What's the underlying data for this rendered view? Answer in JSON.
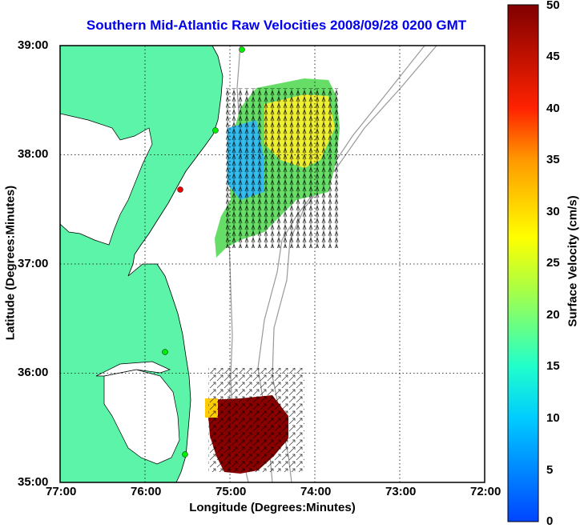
{
  "title": "Southern Mid-Atlantic Raw Velocities 2008/09/28 0200 GMT",
  "xlabel": "Longitude (Degrees:Minutes)",
  "ylabel": "Latitude (Degrees:Minutes)",
  "colorbar": {
    "label": "Surface Velocity (cm/s)",
    "min": 0,
    "max": 50,
    "ticks": [
      "0",
      "5",
      "10",
      "15",
      "20",
      "25",
      "30",
      "35",
      "40",
      "45",
      "50"
    ]
  },
  "xticks": [
    "77:00",
    "76:00",
    "75:00",
    "74:00",
    "73:00",
    "72:00"
  ],
  "yticks": [
    "39:00",
    "38:00",
    "37:00",
    "36:00",
    "35:00"
  ],
  "extent": {
    "lon": [
      -77,
      -72
    ],
    "lat": [
      35,
      39
    ]
  },
  "colors": {
    "land": "#5cf4a8",
    "title": "#0000ee",
    "bathymetry": "#999999"
  }
}
